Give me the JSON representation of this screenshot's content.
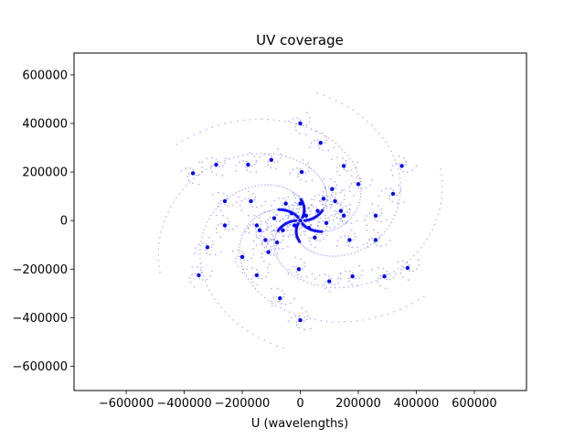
{
  "chart_data": {
    "type": "scatter",
    "title": "UV coverage",
    "xlabel": "U (wavelengths)",
    "ylabel": "",
    "xlim": [
      -780000,
      780000
    ],
    "ylim": [
      -700000,
      690000
    ],
    "x_ticks": [
      -600000,
      -400000,
      -200000,
      0,
      200000,
      400000,
      600000
    ],
    "x_tick_labels": [
      "−600000",
      "−400000",
      "−200000",
      "0",
      "200000",
      "400000",
      "600000"
    ],
    "y_ticks": [
      -600000,
      -400000,
      -200000,
      0,
      200000,
      400000,
      600000
    ],
    "y_tick_labels": [
      "−600000",
      "−400000",
      "−200000",
      "0",
      "200000",
      "400000",
      "600000"
    ],
    "grid": false,
    "legend": "none",
    "marker_color": "#0000ff",
    "series": [
      {
        "description_points": "dense center cluster and spiral-arm knots (approximate positions of visible clusters)",
        "x": [
          0,
          20000,
          -20000,
          30000,
          -30000,
          60000,
          -60000,
          90000,
          -90000,
          120000,
          -120000,
          150000,
          -150000,
          0,
          50000,
          -50000,
          80000,
          -80000,
          110000,
          -110000,
          140000,
          -140000,
          170000,
          -170000,
          200000,
          -200000,
          0,
          0,
          70000,
          -70000,
          150000,
          -150000,
          180000,
          -180000,
          260000,
          -260000,
          290000,
          -290000,
          320000,
          -320000,
          350000,
          -350000,
          370000,
          -370000,
          5000,
          -5000,
          260000,
          -260000,
          100000,
          -100000
        ],
        "y": [
          0,
          20000,
          -20000,
          -30000,
          30000,
          40000,
          -40000,
          -10000,
          10000,
          80000,
          -80000,
          20000,
          -20000,
          70000,
          -70000,
          70000,
          90000,
          -90000,
          130000,
          -130000,
          40000,
          -40000,
          -80000,
          80000,
          150000,
          -150000,
          400000,
          -410000,
          320000,
          -320000,
          225000,
          -225000,
          -230000,
          230000,
          20000,
          -20000,
          -230000,
          230000,
          110000,
          -110000,
          225000,
          -225000,
          -195000,
          195000,
          200000,
          -200000,
          -80000,
          80000,
          -250000,
          250000
        ]
      }
    ]
  }
}
